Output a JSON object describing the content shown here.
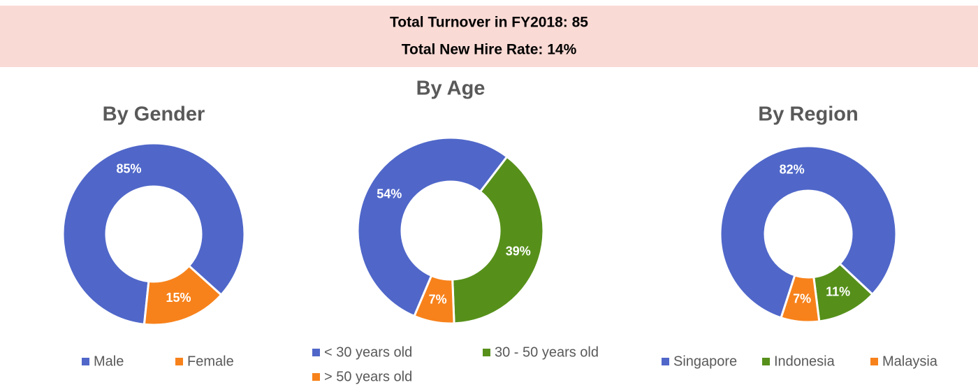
{
  "header": {
    "lines": [
      "Total Turnover in FY2018: 85",
      "Total New Hire Rate: 14%"
    ]
  },
  "chart_data": [
    {
      "type": "pie",
      "title": "By Gender",
      "categories": [
        "Male",
        "Female"
      ],
      "values": [
        85,
        15
      ],
      "value_labels": [
        "85%",
        "15%"
      ],
      "colors": [
        "#5067c9",
        "#f7821b"
      ],
      "legend": "bottom"
    },
    {
      "type": "pie",
      "title": "By Age",
      "categories": [
        "< 30 years old",
        "30 - 50 years old",
        "> 50 years old"
      ],
      "values": [
        54,
        39,
        7
      ],
      "value_labels": [
        "54%",
        "39%",
        "7%"
      ],
      "colors": [
        "#5067c9",
        "#56901a",
        "#f7821b"
      ],
      "legend": "bottom"
    },
    {
      "type": "pie",
      "title": "By Region",
      "categories": [
        "Singapore",
        "Indonesia",
        "Malaysia"
      ],
      "values": [
        82,
        11,
        7
      ],
      "value_labels": [
        "82%",
        "11%",
        "7%"
      ],
      "colors": [
        "#5067c9",
        "#56901a",
        "#f7821b"
      ],
      "legend": "bottom"
    }
  ]
}
